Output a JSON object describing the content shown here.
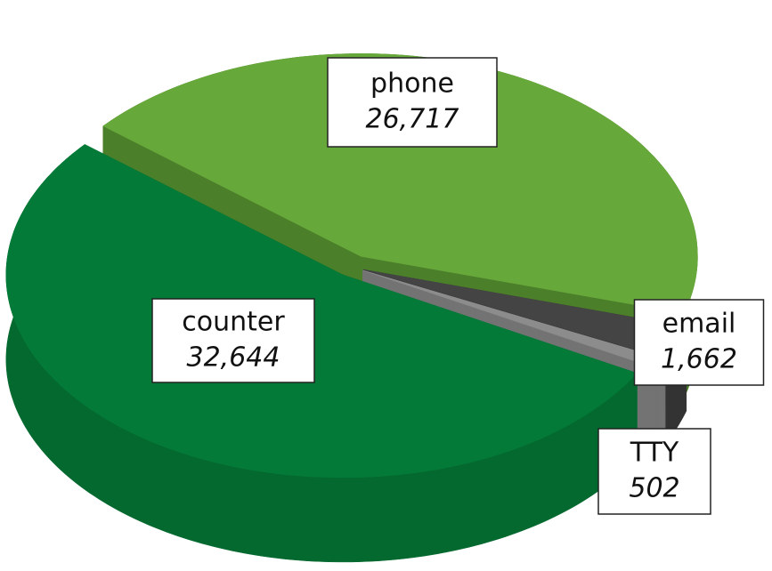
{
  "chart_data": {
    "type": "pie",
    "categories": [
      "phone",
      "email",
      "TTY",
      "counter"
    ],
    "values": [
      26717,
      1662,
      502,
      32644
    ],
    "value_labels": [
      "26,717",
      "1,662",
      "502",
      "32,644"
    ],
    "colors": [
      "#66a83a",
      "#444444",
      "#8c8c8c",
      "#037a37"
    ],
    "side_colors": [
      "#4b7f29",
      "#333333",
      "#737373",
      "#04692f"
    ]
  }
}
